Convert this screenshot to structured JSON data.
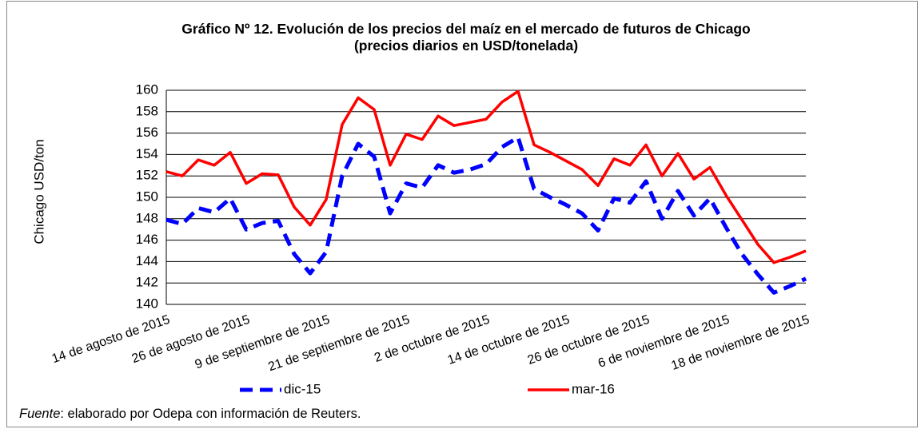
{
  "chart_data": {
    "type": "line",
    "title": "Gráfico Nº 12. Evolución de los precios del maíz en el mercado de futuros de Chicago",
    "subtitle": "(precios diarios en USD/tonelada)",
    "y_label": "Chicago USD/ton",
    "source_label": "Fuente",
    "source": ": elaborado por Odepa con información de Reuters.",
    "categories": [
      "14 de agosto de 2015",
      null,
      null,
      null,
      null,
      "26 de agosto de 2015",
      null,
      null,
      null,
      null,
      "9 de septiembre de 2015",
      null,
      null,
      null,
      null,
      "21 de septiembre de 2015",
      null,
      null,
      null,
      null,
      "2 de octubre de 2015",
      null,
      null,
      null,
      null,
      "14 de octubre de 2015",
      null,
      null,
      null,
      null,
      "26 de octubre de 2015",
      null,
      null,
      null,
      null,
      "6 de noviembre de 2015",
      null,
      null,
      null,
      null,
      "18 de noviembre de 2015"
    ],
    "series": [
      {
        "name": "dic-15",
        "color": "#0000ff",
        "dashed": true,
        "values": [
          147.9,
          147.5,
          149.0,
          148.6,
          149.9,
          147.0,
          147.6,
          147.8,
          144.7,
          142.9,
          144.9,
          152.0,
          155.0,
          153.8,
          148.5,
          151.3,
          150.9,
          153.0,
          152.3,
          152.6,
          153.1,
          154.7,
          155.6,
          150.8,
          150.0,
          149.3,
          148.5,
          146.9,
          149.9,
          149.5,
          151.5,
          148.0,
          150.6,
          148.3,
          149.9,
          147.2,
          144.7,
          142.8,
          141.1,
          141.7,
          142.4
        ]
      },
      {
        "name": "mar-16",
        "color": "#ff0000",
        "dashed": false,
        "values": [
          152.4,
          152.0,
          153.5,
          153.0,
          154.2,
          151.3,
          152.2,
          152.1,
          149.1,
          147.4,
          149.8,
          156.8,
          159.3,
          158.2,
          153.0,
          155.9,
          155.4,
          157.6,
          156.7,
          157.0,
          157.3,
          158.9,
          159.9,
          154.9,
          154.2,
          153.4,
          152.6,
          151.1,
          153.6,
          153.0,
          154.9,
          152.0,
          154.1,
          151.7,
          152.8,
          150.2,
          147.9,
          145.6,
          143.9,
          144.4,
          145.0
        ]
      }
    ],
    "ylim": [
      140,
      160
    ],
    "yticks": [
      140,
      142,
      144,
      146,
      148,
      150,
      152,
      154,
      156,
      158,
      160
    ],
    "grid": true
  }
}
